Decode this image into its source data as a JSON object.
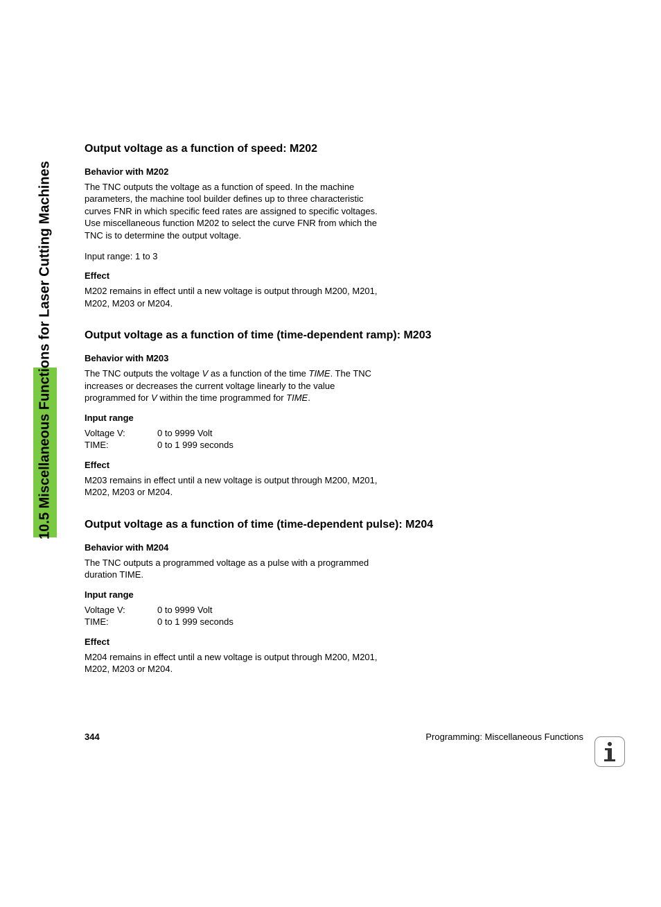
{
  "sideTab": {
    "text": "10.5 Miscellaneous Functions for Laser Cutting Machines",
    "bg_color": "#7ac943",
    "fontsize": 20
  },
  "sections": [
    {
      "heading": "Output voltage as a function of speed: M202",
      "subs": [
        {
          "title": "Behavior with M202",
          "paras": [
            "The TNC outputs the voltage as a function of speed. In the machine parameters, the machine tool builder defines up to three characteristic curves FNR in which specific feed rates are assigned to specific voltages. Use miscellaneous function M202 to select the curve FNR from which the TNC is to determine the output voltage.",
            "Input range: 1 to 3"
          ]
        },
        {
          "title": "Effect",
          "paras": [
            "M202 remains in effect until a new voltage is output through M200, M201, M202, M203 or M204."
          ]
        }
      ]
    },
    {
      "heading": "Output voltage as a function of time (time-dependent ramp): M203",
      "subs": [
        {
          "title": "Behavior with M203",
          "paras_html": [
            "The TNC outputs the voltage <span class=\"italic\">V</span> as a function of the time <span class=\"italic\">TIME</span>. The TNC increases or decreases the current voltage linearly to the value programmed for <span class=\"italic\">V</span> within the time programmed for <span class=\"italic\">TIME</span>."
          ]
        },
        {
          "title": "Input range",
          "ranges": [
            {
              "label": "Voltage V:",
              "value": "0 to 9999 Volt"
            },
            {
              "label": "TIME:",
              "value": "0 to 1 999 seconds"
            }
          ]
        },
        {
          "title": "Effect",
          "paras": [
            "M203 remains in effect until a new voltage is output through M200, M201, M202, M203 or M204."
          ]
        }
      ]
    },
    {
      "heading": "Output voltage as a function of time (time-dependent pulse): M204",
      "subs": [
        {
          "title": "Behavior with M204",
          "paras": [
            "The TNC outputs a programmed voltage as a pulse with a programmed duration TIME."
          ]
        },
        {
          "title": "Input range",
          "ranges": [
            {
              "label": "Voltage V:",
              "value": "0 to 9999 Volt"
            },
            {
              "label": "TIME:",
              "value": "0 to 1 999 seconds"
            }
          ]
        },
        {
          "title": "Effect",
          "paras": [
            "M204 remains in effect until a new voltage is output through M200, M201, M202, M203 or M204."
          ]
        }
      ]
    }
  ],
  "footer": {
    "page": "344",
    "text": "Programming: Miscellaneous Functions"
  }
}
